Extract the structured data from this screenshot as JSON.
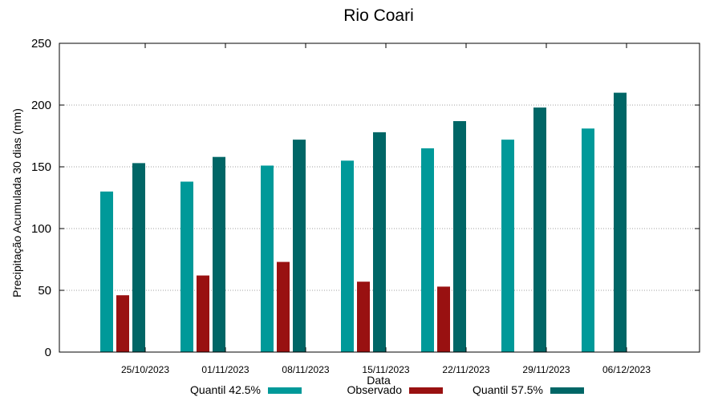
{
  "chart_data": {
    "type": "bar",
    "title": "Rio Coari",
    "xlabel": "Data",
    "ylabel": "Precipitação Acumulada 30 dias (mm)",
    "ylim": [
      0,
      250
    ],
    "yticks": [
      0,
      50,
      100,
      150,
      200,
      250
    ],
    "grid": true,
    "legend_position": "bottom",
    "categories": [
      "25/10/2023",
      "01/11/2023",
      "08/11/2023",
      "15/11/2023",
      "22/11/2023",
      "29/11/2023",
      "06/12/2023"
    ],
    "series": [
      {
        "name": "Quantil 42.5%",
        "color": "#009999",
        "values": [
          130,
          138,
          151,
          155,
          165,
          172,
          181
        ]
      },
      {
        "name": "Observado",
        "color": "#991111",
        "values": [
          46,
          62,
          73,
          57,
          53,
          null,
          null
        ]
      },
      {
        "name": "Quantil 57.5%",
        "color": "#006666",
        "values": [
          153,
          158,
          172,
          178,
          187,
          198,
          210
        ]
      }
    ]
  }
}
